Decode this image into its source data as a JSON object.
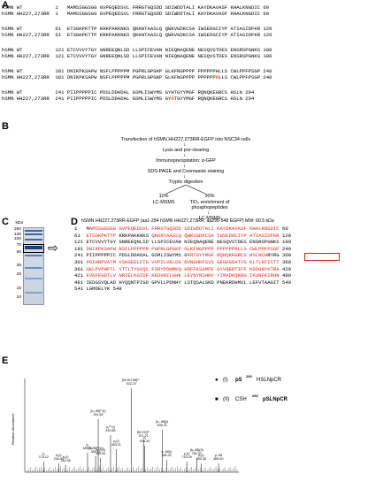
{
  "panels": {
    "A": {
      "label": "A",
      "blocks": [
        {
          "wt": "hSMN WT",
          "wt_start": "1",
          "wt_seq": "MAMSSGGSGG GVPEQEDSVL FRRGTGQSDD SDIWDDTALI KAYDKAVASF KHALKNGDIC 60",
          "mut": "hSMN HH227,273RR",
          "mut_start": "1",
          "mut_seq": "MAMSSGGSGG GVPEQEDSVL FRRGTGQSDD SDIWDDTALI KAYDKAVASF KHALKNGDIC 60"
        },
        {
          "wt": "hSMN WT",
          "wt_start": "61",
          "wt_seq": "ETSGKPKTTP KRKPAKKNKS QKKNTAASLQ QWKVGDKCSA IWSEDGCIYP ATIASIDFKR 120",
          "mut": "hSMN HH227,273RR",
          "mut_start": "61",
          "mut_seq": "ETSGKPKTTP KRKPAKKNKS QKKNTAASLQ QWKVGDKCSA IWSEDGCIYP ATIASIDFKR 120"
        },
        {
          "wt": "hSMN WT",
          "wt_start": "121",
          "wt_seq": "ETCVVVYTGY GNREEQNLSD LLSPICEVAN NIEQNAQENE NESQVSTDES ENSRSPGNKS 180",
          "mut": "hSMN HH227,273RR",
          "mut_start": "121",
          "mut_seq": "ETCVVVYTGY GNREEQNLSD LLSPICEVAN NIEQNAQENE NESQVSTDES ENSRSPGNKS 180"
        },
        {
          "wt": "hSMN WT",
          "wt_start": "181",
          "wt_seq": "DNIKPKSAPW NSFLPPPPPM PGPRLGPGKP GLKFNGPPPP PPPPPPHLLS CWLPPFPSGP 240",
          "mut": "hSMN HH227,273RR",
          "mut_start": "181",
          "mut_seq_pre": "DNIKPKSAPW NSFLPPPPPM PGPRLGPGKP GLKFNGPPPP PPPPPP",
          "mut_seq_red": "R",
          "mut_seq_post": "LLS CWLPPFPSGP 240"
        },
        {
          "wt": "hSMN WT",
          "wt_start": "241",
          "wt_seq": "PIIPPPPPIC PDSLDDADAL GSMLISWYMS GYHTGYYMGF RQNQKEGRCS HSLN 294",
          "mut": "hSMN HH227,273RR",
          "mut_start": "241",
          "mut_seq_pre": "PIIPPPPPIC PDSLDDADAL GSMLISWYMS GY",
          "mut_seq_red": "R",
          "mut_seq_post": "TGYYMGF RQNQKEGRCS HSLN 294"
        }
      ]
    },
    "B": {
      "label": "B",
      "steps": [
        "Transfection of hSMN HH227,273RR-EGFP into NSC34 cells",
        "Lysis and pre-clearing",
        "Immunoprecipitation: α-GFP",
        "SDS-PAGE and Coomassie staining",
        "Tryptic digestion"
      ],
      "split_left_pct": "10%",
      "split_left": "LC-MSMS",
      "split_right_pct": "90%",
      "split_right_1": "TiO₂ enrichment of",
      "split_right_2": "phosphopeptides",
      "split_right_3": "LC-MSMS"
    },
    "C": {
      "label": "C",
      "unit": "kDa",
      "markers": [
        "250",
        "130",
        "100",
        "70",
        "55",
        "35",
        "25",
        "15",
        "10"
      ]
    },
    "D": {
      "label": "D",
      "title": "hSMN HH227,273RR-EGFP (aa1-294 hSMN HH227,273RR; aa295-548 EGFP) MW: 60.5 kDa",
      "lines": [
        {
          "n": "1",
          "segs": [
            {
              "t": "M",
              "r": false
            },
            {
              "t": "AMSSGGSGG GVPEQEDSVL FRRGTGQSDD SDIWDDTALI KAYDKAVASF KHALKNGDIC",
              "r": true
            }
          ],
          "end": "60"
        },
        {
          "n": "61",
          "segs": [
            {
              "t": "ETSGKPKTTP",
              "r": true
            },
            {
              "t": " KRKPAKKNKS ",
              "r": false
            },
            {
              "t": "QKKNTAASLQ QWKVGDKCSA IWSEDGCIYP ATIASIDFKR",
              "r": true
            }
          ],
          "end": "120"
        },
        {
          "n": "121",
          "segs": [
            {
              "t": "ETCVVVYTGY GNREEQNLSD LLSPICEVAN NIEQNAQENE NESQVSTDES ENSRSPGNKS",
              "r": false
            }
          ],
          "end": "180"
        },
        {
          "n": "181",
          "segs": [
            {
              "t": "DNIKPKSAPW NSFLPPPPPM PGPRLGPGKP GLKFNGPPPP PPPPPPRLLS CWLPPFPSGP",
              "r": true
            }
          ],
          "end": "240"
        },
        {
          "n": "241",
          "segs": [
            {
              "t": "PIIPPPPPIC PDSLDDADAL GSMLISWYMS GY",
              "r": false
            },
            {
              "t": "RTGYYMGF RQNQKEGRCS HSLNCH",
              "r": true
            },
            {
              "t": "RYRG",
              "r": false
            }
          ],
          "end": "300"
        },
        {
          "n": "301",
          "segs": [
            {
              "t": "PGIHRPVATM VSKGEELFTG VVPILVELDG DVNGHKFSVS GEGEGDATYG KLTLKFICTT",
              "r": true
            }
          ],
          "end": "360"
        },
        {
          "n": "361",
          "segs": [
            {
              "t": "GKLPVPWPTL VTTLTYGVQC FSRYPDHMKQ HDFFKSAMPE GYVQERTIFF KDDGNYKTRA",
              "r": true
            }
          ],
          "end": "420"
        },
        {
          "n": "421",
          "segs": [
            {
              "t": "EVKFEGDTLV NRIELKGIDF KEDGNILGHK LEYNYNSHNV YIMADKQKNG IKVNFKIRHN",
              "r": true
            }
          ],
          "end": "480"
        },
        {
          "n": "481",
          "segs": [
            {
              "t": "IEDGSVQLAD HYQQNTPIGD GPVLLPDNHY LSTQSALSKD PNEKRDHMVL LEFVTAAGIT",
              "r": false
            }
          ],
          "end": "540"
        },
        {
          "n": "541",
          "segs": [
            {
              "t": "LGMDELYK",
              "r": false
            }
          ],
          "end": "548"
        }
      ]
    },
    "E": {
      "label": "E",
      "ylabel": "Relative Abundance",
      "legend_1_roman": "(I)",
      "legend_1_pre": "pS",
      "legend_1_site": "290",
      "legend_1_seq": "HSLNpCR",
      "legend_2_roman": "(II)",
      "legend_2_pre": "CSH",
      "legend_2_site": "292",
      "legend_2_seq": "pSLNpCR",
      "peak_labels": [
        {
          "label": "[M+2H-98]²⁺",
          "sub": "522.23"
        },
        {
          "label": "[b₃-98]²⁺(I)",
          "sub": "391.69"
        },
        {
          "label": "y₆²⁺(I)",
          "sub": "440.68"
        },
        {
          "label": "y₃",
          "sub": "349.30"
        },
        {
          "label": "[b₄-98]²⁺(I)",
          "sub": "381.33"
        },
        {
          "label": "y₆²⁺(II)",
          "sub": "400.09"
        },
        {
          "label": "y₂(I)",
          "sub": "463.21"
        },
        {
          "label": "[M+2H]²⁺",
          "sub": "571.21"
        },
        {
          "label": "[b₅-98](I)",
          "sub": "645.31"
        },
        {
          "label": "y₄",
          "sub": "576.29"
        },
        {
          "label": "y₁",
          "sub": "175.12"
        },
        {
          "label": "b₂(I)",
          "sub": "234.09"
        },
        {
          "label": "b₃(I)",
          "sub": "262.08"
        },
        {
          "label": "y₅-98(I)",
          "sub": "663.32"
        },
        {
          "label": "y₅(I)",
          "sub": "743.29"
        },
        {
          "label": "[b₆-98](II)",
          "sub": "782.37"
        },
        {
          "label": "y₇(I)",
          "sub": "800.38"
        },
        {
          "label": "y₇-98",
          "sub": "869.40"
        }
      ]
    }
  }
}
